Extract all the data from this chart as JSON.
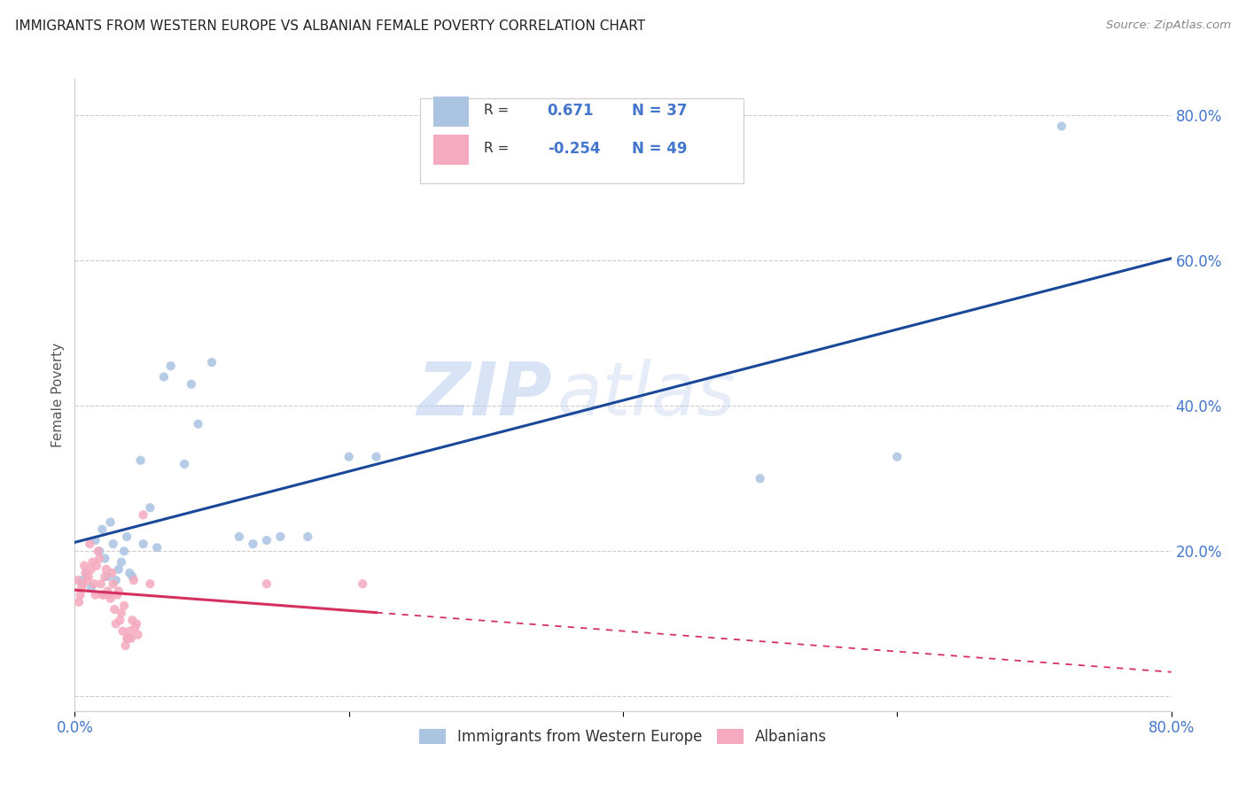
{
  "title": "IMMIGRANTS FROM WESTERN EUROPE VS ALBANIAN FEMALE POVERTY CORRELATION CHART",
  "source": "Source: ZipAtlas.com",
  "ylabel": "Female Poverty",
  "xlim": [
    0.0,
    0.8
  ],
  "ylim": [
    -0.02,
    0.85
  ],
  "xticks": [
    0.0,
    0.2,
    0.4,
    0.6,
    0.8
  ],
  "xtick_labels": [
    "0.0%",
    "",
    "",
    "",
    "80.0%"
  ],
  "yticks": [
    0.0,
    0.2,
    0.4,
    0.6,
    0.8
  ],
  "ytick_labels": [
    "",
    "20.0%",
    "40.0%",
    "60.0%",
    "80.0%"
  ],
  "blue_R": "0.671",
  "blue_N": "37",
  "pink_R": "-0.254",
  "pink_N": "49",
  "blue_color": "#aac4e2",
  "pink_color": "#f5aabf",
  "blue_line_color": "#1a4899",
  "pink_line_color": "#d63060",
  "watermark_zip": "ZIP",
  "watermark_atlas": "atlas",
  "legend_label_blue": "Immigrants from Western Europe",
  "legend_label_pink": "Albanians",
  "blue_scatter_x": [
    0.005,
    0.008,
    0.012,
    0.015,
    0.018,
    0.02,
    0.022,
    0.024,
    0.026,
    0.028,
    0.03,
    0.032,
    0.034,
    0.036,
    0.038,
    0.04,
    0.042,
    0.048,
    0.05,
    0.055,
    0.06,
    0.065,
    0.07,
    0.08,
    0.085,
    0.09,
    0.1,
    0.12,
    0.13,
    0.14,
    0.15,
    0.17,
    0.2,
    0.22,
    0.5,
    0.6,
    0.72
  ],
  "blue_scatter_y": [
    0.16,
    0.17,
    0.15,
    0.215,
    0.2,
    0.23,
    0.19,
    0.165,
    0.24,
    0.21,
    0.16,
    0.175,
    0.185,
    0.2,
    0.22,
    0.17,
    0.165,
    0.325,
    0.21,
    0.26,
    0.205,
    0.44,
    0.455,
    0.32,
    0.43,
    0.375,
    0.46,
    0.22,
    0.21,
    0.215,
    0.22,
    0.22,
    0.33,
    0.33,
    0.3,
    0.33,
    0.785
  ],
  "pink_scatter_x": [
    0.002,
    0.003,
    0.004,
    0.005,
    0.006,
    0.007,
    0.008,
    0.009,
    0.01,
    0.011,
    0.012,
    0.013,
    0.014,
    0.015,
    0.016,
    0.017,
    0.018,
    0.019,
    0.02,
    0.021,
    0.022,
    0.023,
    0.024,
    0.025,
    0.026,
    0.027,
    0.028,
    0.029,
    0.03,
    0.031,
    0.032,
    0.033,
    0.034,
    0.035,
    0.036,
    0.037,
    0.038,
    0.039,
    0.04,
    0.041,
    0.042,
    0.043,
    0.044,
    0.045,
    0.046,
    0.05,
    0.055,
    0.14,
    0.21
  ],
  "pink_scatter_y": [
    0.16,
    0.13,
    0.14,
    0.15,
    0.155,
    0.18,
    0.17,
    0.16,
    0.165,
    0.21,
    0.175,
    0.185,
    0.155,
    0.14,
    0.18,
    0.2,
    0.19,
    0.155,
    0.14,
    0.14,
    0.165,
    0.175,
    0.145,
    0.14,
    0.135,
    0.17,
    0.155,
    0.12,
    0.1,
    0.14,
    0.145,
    0.105,
    0.115,
    0.09,
    0.125,
    0.07,
    0.08,
    0.08,
    0.09,
    0.08,
    0.105,
    0.16,
    0.095,
    0.1,
    0.085,
    0.25,
    0.155,
    0.155,
    0.155
  ],
  "background_color": "#ffffff",
  "grid_color": "#cccccc",
  "title_color": "#222222",
  "tick_label_color": "#4477cc"
}
